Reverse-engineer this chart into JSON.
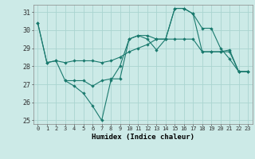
{
  "xlabel": "Humidex (Indice chaleur)",
  "background_color": "#cceae7",
  "grid_color": "#aad4d0",
  "line_color": "#1a7a6e",
  "x_min": -0.5,
  "x_max": 23.5,
  "y_min": 24.8,
  "y_max": 31.4,
  "yticks": [
    25,
    26,
    27,
    28,
    29,
    30,
    31
  ],
  "xticks": [
    0,
    1,
    2,
    3,
    4,
    5,
    6,
    7,
    8,
    9,
    10,
    11,
    12,
    13,
    14,
    15,
    16,
    17,
    18,
    19,
    20,
    21,
    22,
    23
  ],
  "line1_x": [
    0,
    1,
    2,
    3,
    4,
    5,
    6,
    7,
    8,
    9,
    10,
    11,
    12,
    13,
    14,
    15,
    16,
    17,
    18,
    19,
    20,
    21,
    22,
    23
  ],
  "line1_y": [
    30.4,
    28.2,
    28.3,
    28.2,
    28.3,
    28.3,
    28.3,
    28.2,
    28.3,
    28.5,
    28.8,
    29.0,
    29.2,
    29.5,
    29.5,
    29.5,
    29.5,
    29.5,
    28.8,
    28.8,
    28.8,
    28.8,
    27.7,
    27.7
  ],
  "line2_x": [
    0,
    1,
    2,
    3,
    4,
    5,
    6,
    7,
    8,
    9,
    10,
    11,
    12,
    13,
    14,
    15,
    16,
    17,
    18,
    19,
    20,
    21,
    22,
    23
  ],
  "line2_y": [
    30.4,
    28.2,
    28.3,
    27.2,
    26.9,
    26.5,
    25.8,
    25.0,
    27.2,
    28.0,
    29.5,
    29.7,
    29.5,
    28.9,
    29.5,
    31.2,
    31.2,
    30.9,
    30.1,
    30.1,
    29.0,
    28.4,
    27.7,
    27.7
  ],
  "line3_x": [
    3,
    4,
    5,
    6,
    7,
    8,
    9,
    10,
    11,
    12,
    13,
    14,
    15,
    16,
    17,
    18,
    19,
    20,
    21,
    22,
    23
  ],
  "line3_y": [
    27.2,
    27.2,
    27.2,
    26.9,
    27.2,
    27.3,
    27.3,
    29.5,
    29.7,
    29.7,
    29.5,
    29.5,
    31.2,
    31.2,
    30.9,
    28.8,
    28.8,
    28.8,
    28.9,
    27.7,
    27.7
  ]
}
